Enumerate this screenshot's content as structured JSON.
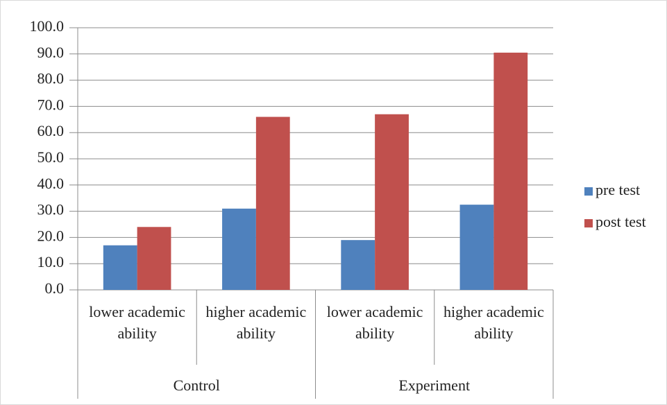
{
  "chart_data": {
    "type": "bar",
    "groups": [
      {
        "name": "Control",
        "categories": [
          "lower academic ability",
          "higher academic ability"
        ]
      },
      {
        "name": "Experiment",
        "categories": [
          "lower academic ability",
          "higher academic ability"
        ]
      }
    ],
    "series": [
      {
        "name": "pre test",
        "color": "#4f81bd",
        "values": [
          17,
          31,
          19,
          32.5
        ]
      },
      {
        "name": "post test",
        "color": "#c0504d",
        "values": [
          24,
          66,
          67,
          90.5
        ]
      }
    ],
    "ylim": [
      0,
      100
    ],
    "yticks": [
      {
        "value": 0,
        "label": "0.0"
      },
      {
        "value": 10,
        "label": "10.0"
      },
      {
        "value": 20,
        "label": "20.0"
      },
      {
        "value": 30,
        "label": "30.0"
      },
      {
        "value": 40,
        "label": "40.0"
      },
      {
        "value": 50,
        "label": "50.0"
      },
      {
        "value": 60,
        "label": "60.0"
      },
      {
        "value": 70,
        "label": "70.0"
      },
      {
        "value": 80,
        "label": "80.0"
      },
      {
        "value": 90,
        "label": "90.0"
      },
      {
        "value": 100,
        "label": "100.0"
      }
    ],
    "grid": true,
    "legend": "right"
  }
}
